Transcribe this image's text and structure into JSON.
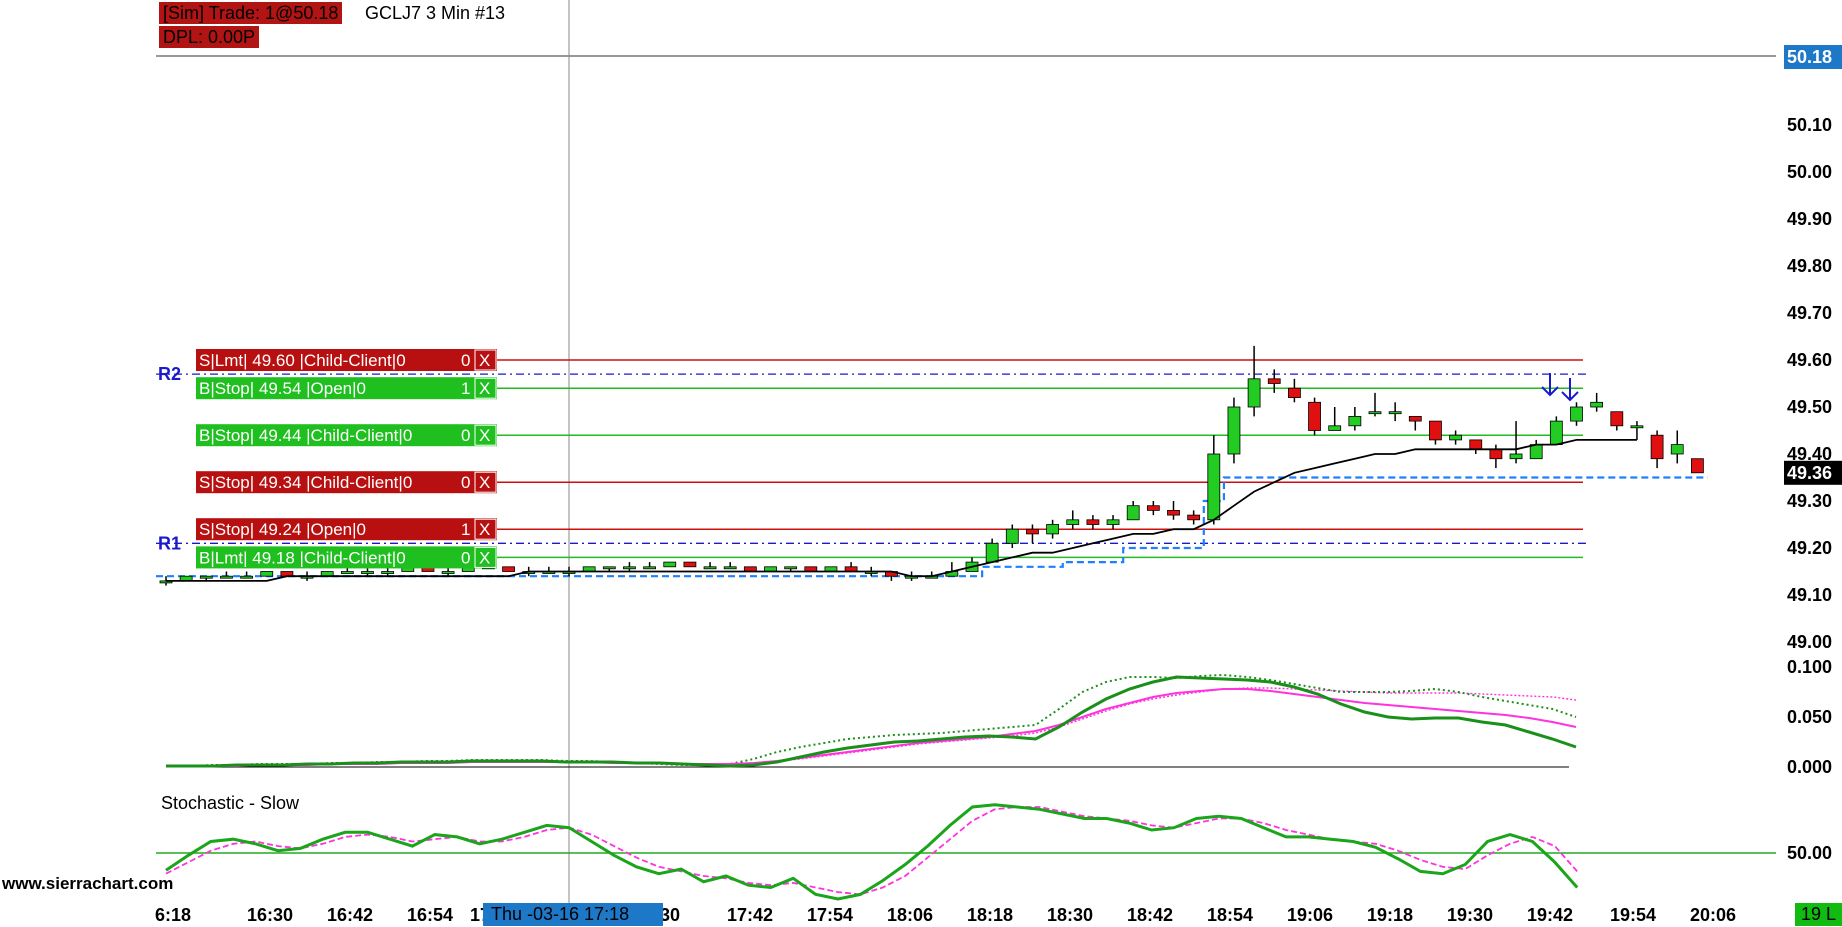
{
  "header": {
    "trade_text": "[Sim]  Trade: 1@50.18",
    "symbol_text": "GCLJ7  3 Min   #13",
    "dpl_text": "DPL: 0.00P"
  },
  "watermark": "www.sierrachart.com",
  "cursor_time_label": "Thu -03-16  17:18",
  "bottom_right_badge": "19 L",
  "colors": {
    "up_candle": "#22cc22",
    "down_candle": "#e01010",
    "sell_order": "#b81010",
    "buy_order": "#1fbf1f",
    "pivot": "#1a1acc",
    "stop_line": "#1e7fff",
    "ma_line": "#000000",
    "osc_main": "#1a8f1a",
    "osc_signal": "#ff33dd",
    "price_tag": "#1e78c8"
  },
  "chart_data": {
    "type": "candlestick",
    "symbol": "GCLJ7",
    "interval": "3 Min",
    "price_axis": {
      "range": [
        48.9,
        50.22
      ],
      "ticks": [
        "50.18",
        "50.10",
        "50.00",
        "49.90",
        "49.80",
        "49.70",
        "49.60",
        "49.50",
        "49.40",
        "49.30",
        "49.20",
        "49.10",
        "49.00"
      ],
      "last_price_label": "50.18",
      "current_price_label": "49.36"
    },
    "time_axis": {
      "labels": [
        "6:18",
        "16:30",
        "16:42",
        "16:54",
        "17",
        "30",
        "17:42",
        "17:54",
        "18:06",
        "18:18",
        "18:30",
        "18:42",
        "18:54",
        "19:06",
        "19:18",
        "19:30",
        "19:42",
        "19:54",
        "20:06"
      ]
    },
    "candles": [
      [
        49.13,
        49.14,
        49.12,
        49.13
      ],
      [
        49.13,
        49.14,
        49.13,
        49.14
      ],
      [
        49.14,
        49.14,
        49.13,
        49.14
      ],
      [
        49.14,
        49.15,
        49.14,
        49.14
      ],
      [
        49.14,
        49.15,
        49.14,
        49.14
      ],
      [
        49.14,
        49.15,
        49.14,
        49.15
      ],
      [
        49.15,
        49.15,
        49.14,
        49.14
      ],
      [
        49.14,
        49.15,
        49.13,
        49.14
      ],
      [
        49.14,
        49.15,
        49.14,
        49.15
      ],
      [
        49.15,
        49.16,
        49.15,
        49.15
      ],
      [
        49.15,
        49.16,
        49.14,
        49.15
      ],
      [
        49.15,
        49.16,
        49.14,
        49.15
      ],
      [
        49.15,
        49.16,
        49.15,
        49.16
      ],
      [
        49.16,
        49.16,
        49.15,
        49.15
      ],
      [
        49.15,
        49.16,
        49.14,
        49.15
      ],
      [
        49.15,
        49.16,
        49.15,
        49.16
      ],
      [
        49.16,
        49.17,
        49.16,
        49.16
      ],
      [
        49.16,
        49.16,
        49.15,
        49.15
      ],
      [
        49.15,
        49.16,
        49.14,
        49.15
      ],
      [
        49.15,
        49.16,
        49.15,
        49.15
      ],
      [
        49.15,
        49.16,
        49.14,
        49.15
      ],
      [
        49.15,
        49.16,
        49.15,
        49.16
      ],
      [
        49.16,
        49.16,
        49.15,
        49.16
      ],
      [
        49.16,
        49.17,
        49.15,
        49.16
      ],
      [
        49.16,
        49.17,
        49.16,
        49.16
      ],
      [
        49.16,
        49.17,
        49.16,
        49.17
      ],
      [
        49.17,
        49.17,
        49.16,
        49.16
      ],
      [
        49.16,
        49.17,
        49.16,
        49.16
      ],
      [
        49.16,
        49.17,
        49.16,
        49.16
      ],
      [
        49.16,
        49.16,
        49.15,
        49.15
      ],
      [
        49.15,
        49.16,
        49.15,
        49.16
      ],
      [
        49.16,
        49.16,
        49.15,
        49.16
      ],
      [
        49.16,
        49.16,
        49.15,
        49.15
      ],
      [
        49.15,
        49.16,
        49.15,
        49.16
      ],
      [
        49.16,
        49.17,
        49.15,
        49.15
      ],
      [
        49.15,
        49.16,
        49.14,
        49.15
      ],
      [
        49.15,
        49.15,
        49.13,
        49.14
      ],
      [
        49.14,
        49.15,
        49.13,
        49.14
      ],
      [
        49.14,
        49.15,
        49.14,
        49.14
      ],
      [
        49.14,
        49.17,
        49.14,
        49.15
      ],
      [
        49.15,
        49.18,
        49.15,
        49.17
      ],
      [
        49.17,
        49.22,
        49.17,
        49.21
      ],
      [
        49.21,
        49.25,
        49.2,
        49.24
      ],
      [
        49.24,
        49.25,
        49.21,
        49.23
      ],
      [
        49.23,
        49.26,
        49.22,
        49.25
      ],
      [
        49.25,
        49.28,
        49.24,
        49.26
      ],
      [
        49.26,
        49.27,
        49.24,
        49.25
      ],
      [
        49.25,
        49.27,
        49.24,
        49.26
      ],
      [
        49.26,
        49.3,
        49.26,
        49.29
      ],
      [
        49.29,
        49.3,
        49.27,
        49.28
      ],
      [
        49.28,
        49.3,
        49.26,
        49.27
      ],
      [
        49.27,
        49.28,
        49.25,
        49.26
      ],
      [
        49.26,
        49.44,
        49.25,
        49.4
      ],
      [
        49.4,
        49.52,
        49.38,
        49.5
      ],
      [
        49.5,
        49.63,
        49.48,
        49.56
      ],
      [
        49.56,
        49.58,
        49.53,
        49.55
      ],
      [
        49.54,
        49.56,
        49.51,
        49.52
      ],
      [
        49.51,
        49.52,
        49.44,
        49.45
      ],
      [
        49.45,
        49.5,
        49.45,
        49.46
      ],
      [
        49.46,
        49.5,
        49.45,
        49.48
      ],
      [
        49.49,
        49.53,
        49.48,
        49.49
      ],
      [
        49.49,
        49.51,
        49.47,
        49.49
      ],
      [
        49.48,
        49.48,
        49.45,
        49.47
      ],
      [
        49.47,
        49.47,
        49.42,
        49.43
      ],
      [
        49.43,
        49.45,
        49.42,
        49.44
      ],
      [
        49.43,
        49.43,
        49.4,
        49.41
      ],
      [
        49.41,
        49.42,
        49.37,
        49.39
      ],
      [
        49.39,
        49.47,
        49.38,
        49.4
      ],
      [
        49.39,
        49.43,
        49.39,
        49.42
      ],
      [
        49.42,
        49.48,
        49.42,
        49.47
      ],
      [
        49.47,
        49.51,
        49.46,
        49.5
      ],
      [
        49.5,
        49.53,
        49.49,
        49.51
      ],
      [
        49.49,
        49.49,
        49.45,
        49.46
      ],
      [
        49.46,
        49.47,
        49.43,
        49.46
      ],
      [
        49.44,
        49.45,
        49.37,
        49.39
      ],
      [
        49.4,
        49.45,
        49.38,
        49.42
      ],
      [
        49.39,
        49.39,
        49.36,
        49.36
      ]
    ],
    "moving_average": [
      49.13,
      49.13,
      49.13,
      49.13,
      49.13,
      49.13,
      49.14,
      49.14,
      49.14,
      49.14,
      49.14,
      49.14,
      49.14,
      49.14,
      49.14,
      49.14,
      49.14,
      49.14,
      49.15,
      49.15,
      49.15,
      49.15,
      49.15,
      49.15,
      49.15,
      49.15,
      49.15,
      49.15,
      49.15,
      49.15,
      49.15,
      49.15,
      49.15,
      49.15,
      49.15,
      49.15,
      49.15,
      49.14,
      49.14,
      49.15,
      49.16,
      49.17,
      49.18,
      49.19,
      49.19,
      49.2,
      49.21,
      49.22,
      49.23,
      49.23,
      49.24,
      49.24,
      49.26,
      49.29,
      49.32,
      49.34,
      49.36,
      49.37,
      49.38,
      49.39,
      49.4,
      49.4,
      49.41,
      49.41,
      49.41,
      49.41,
      49.41,
      49.41,
      49.42,
      49.42,
      49.43,
      49.43,
      49.43,
      49.43
    ],
    "pivot_levels": [
      {
        "label": "R2",
        "value": 49.57
      },
      {
        "label": "R1",
        "value": 49.21
      }
    ],
    "orders": [
      {
        "text": "S|Lmt| 49.60 |Child-Client|0",
        "qty": "0",
        "close": "X",
        "side": "sell",
        "price": 49.6
      },
      {
        "text": "B|Stop| 49.54 |Open|0",
        "qty": "1",
        "close": "X",
        "side": "buy",
        "price": 49.54
      },
      {
        "text": "B|Stop| 49.44 |Child-Client|0",
        "qty": "0",
        "close": "X",
        "side": "buy",
        "price": 49.44
      },
      {
        "text": "S|Stop| 49.34 |Child-Client|0",
        "qty": "0",
        "close": "X",
        "side": "sell",
        "price": 49.34
      },
      {
        "text": "S|Stop| 49.24 |Open|0",
        "qty": "1",
        "close": "X",
        "side": "sell",
        "price": 49.24
      },
      {
        "text": "B|Lmt| 49.18 |Child-Client|0",
        "qty": "0",
        "close": "X",
        "side": "buy",
        "price": 49.18
      }
    ],
    "trailing_stop": [
      49.14,
      49.14,
      49.14,
      49.14,
      49.14,
      49.14,
      49.14,
      49.14,
      49.14,
      49.14,
      49.14,
      49.14,
      49.14,
      49.14,
      49.14,
      49.14,
      49.14,
      49.14,
      49.14,
      49.14,
      49.14,
      49.14,
      49.14,
      49.14,
      49.14,
      49.14,
      49.14,
      49.14,
      49.14,
      49.14,
      49.14,
      49.14,
      49.14,
      49.14,
      49.14,
      49.14,
      49.14,
      49.14,
      49.14,
      49.14,
      49.14,
      49.16,
      49.16,
      49.16,
      49.16,
      49.17,
      49.17,
      49.17,
      49.2,
      49.2,
      49.2,
      49.2,
      49.3,
      49.35,
      49.35,
      49.35,
      49.35,
      49.35,
      49.35,
      49.35,
      49.35,
      49.35,
      49.35,
      49.35,
      49.35,
      49.35,
      49.35,
      49.35,
      49.35,
      49.35,
      49.35,
      49.35,
      49.35,
      49.35,
      49.35,
      49.35,
      49.35
    ],
    "oscillator": {
      "axis_ticks": [
        "0.100",
        "0.050",
        "0.000"
      ],
      "range": [
        0,
        0.125
      ],
      "main": [
        0.001,
        0.001,
        0.001,
        0.002,
        0.002,
        0.002,
        0.003,
        0.003,
        0.004,
        0.004,
        0.005,
        0.005,
        0.005,
        0.006,
        0.006,
        0.006,
        0.006,
        0.005,
        0.005,
        0.005,
        0.004,
        0.004,
        0.003,
        0.002,
        0.001,
        0.002,
        0.005,
        0.01,
        0.015,
        0.019,
        0.022,
        0.025,
        0.026,
        0.028,
        0.03,
        0.031,
        0.03,
        0.028,
        0.04,
        0.055,
        0.068,
        0.078,
        0.085,
        0.09,
        0.089,
        0.088,
        0.087,
        0.085,
        0.08,
        0.073,
        0.063,
        0.055,
        0.05,
        0.048,
        0.049,
        0.049,
        0.045,
        0.042,
        0.035,
        0.028,
        0.02
      ],
      "signal": [
        0.001,
        0.001,
        0.001,
        0.001,
        0.002,
        0.002,
        0.002,
        0.003,
        0.003,
        0.003,
        0.004,
        0.004,
        0.004,
        0.005,
        0.005,
        0.005,
        0.005,
        0.005,
        0.005,
        0.004,
        0.004,
        0.004,
        0.003,
        0.003,
        0.003,
        0.004,
        0.006,
        0.009,
        0.012,
        0.015,
        0.018,
        0.021,
        0.024,
        0.026,
        0.028,
        0.03,
        0.033,
        0.036,
        0.042,
        0.05,
        0.058,
        0.064,
        0.07,
        0.074,
        0.076,
        0.078,
        0.078,
        0.076,
        0.073,
        0.07,
        0.067,
        0.064,
        0.062,
        0.06,
        0.058,
        0.056,
        0.054,
        0.052,
        0.049,
        0.045,
        0.04
      ],
      "dotted_main": [
        0.001,
        0.001,
        0.002,
        0.002,
        0.003,
        0.003,
        0.003,
        0.004,
        0.004,
        0.005,
        0.005,
        0.006,
        0.006,
        0.007,
        0.007,
        0.007,
        0.007,
        0.006,
        0.006,
        0.005,
        0.004,
        0.003,
        0.002,
        0.002,
        0.003,
        0.008,
        0.015,
        0.02,
        0.024,
        0.028,
        0.03,
        0.032,
        0.033,
        0.034,
        0.036,
        0.038,
        0.04,
        0.042,
        0.058,
        0.075,
        0.085,
        0.09,
        0.09,
        0.089,
        0.091,
        0.092,
        0.09,
        0.087,
        0.083,
        0.079,
        0.075,
        0.075,
        0.075,
        0.076,
        0.078,
        0.075,
        0.07,
        0.066,
        0.062,
        0.058,
        0.05
      ],
      "dotted_signal": [
        0.001,
        0.001,
        0.001,
        0.001,
        0.002,
        0.002,
        0.002,
        0.003,
        0.003,
        0.003,
        0.004,
        0.004,
        0.004,
        0.005,
        0.005,
        0.005,
        0.005,
        0.005,
        0.005,
        0.004,
        0.004,
        0.004,
        0.003,
        0.003,
        0.003,
        0.004,
        0.006,
        0.008,
        0.011,
        0.014,
        0.017,
        0.02,
        0.023,
        0.025,
        0.027,
        0.029,
        0.031,
        0.034,
        0.04,
        0.048,
        0.056,
        0.063,
        0.068,
        0.072,
        0.075,
        0.078,
        0.079,
        0.079,
        0.078,
        0.077,
        0.076,
        0.075,
        0.074,
        0.074,
        0.074,
        0.074,
        0.073,
        0.072,
        0.071,
        0.07,
        0.067
      ]
    },
    "stochastic": {
      "title": "Stochastic - Slow",
      "axis_ticks": [
        "50.00"
      ],
      "range": [
        0,
        100
      ],
      "k": [
        35,
        48,
        60,
        62,
        58,
        52,
        54,
        62,
        68,
        68,
        62,
        56,
        66,
        64,
        58,
        62,
        68,
        74,
        72,
        60,
        48,
        38,
        32,
        36,
        25,
        30,
        22,
        20,
        28,
        14,
        10,
        14,
        26,
        40,
        56,
        74,
        90,
        92,
        90,
        88,
        84,
        80,
        80,
        76,
        70,
        72,
        80,
        82,
        80,
        72,
        64,
        64,
        62,
        60,
        55,
        45,
        34,
        32,
        40,
        60,
        66,
        60,
        42,
        20
      ],
      "d": [
        32,
        42,
        52,
        58,
        60,
        56,
        54,
        58,
        64,
        66,
        64,
        60,
        62,
        64,
        60,
        60,
        64,
        70,
        72,
        66,
        56,
        46,
        38,
        34,
        30,
        28,
        24,
        22,
        24,
        20,
        16,
        14,
        20,
        30,
        46,
        62,
        78,
        88,
        90,
        90,
        86,
        82,
        80,
        78,
        74,
        72,
        76,
        80,
        80,
        76,
        70,
        66,
        62,
        60,
        58,
        52,
        44,
        38,
        36,
        48,
        58,
        64,
        56,
        34
      ]
    }
  }
}
